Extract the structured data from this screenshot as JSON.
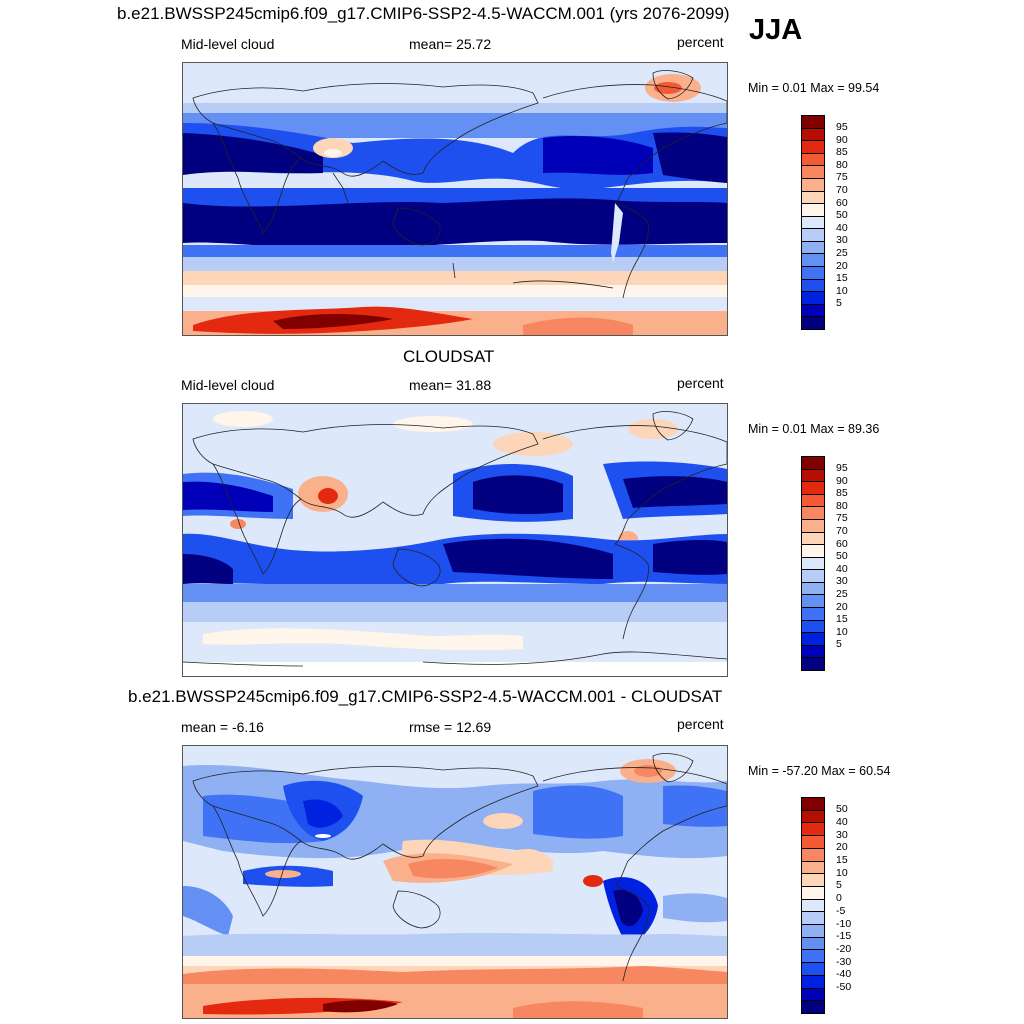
{
  "season": "JJA",
  "panels": [
    {
      "title": "b.e21.BWSSP245cmip6.f09_g17.CMIP6-SSP2-4.5-WACCM.001 (yrs 2076-2099)",
      "left_label": "Mid-level cloud",
      "center_label": "mean=  25.72",
      "right_label": "percent",
      "minmax": "Min =   0.01 Max =  99.54",
      "colorbar_labels": [
        "95",
        "90",
        "85",
        "80",
        "75",
        "70",
        "60",
        "50",
        "40",
        "30",
        "25",
        "20",
        "15",
        "10",
        "5"
      ]
    },
    {
      "title": "CLOUDSAT",
      "left_label": "Mid-level cloud",
      "center_label": "mean=  31.88",
      "right_label": "percent",
      "minmax": "Min =   0.01 Max =  89.36",
      "colorbar_labels": [
        "95",
        "90",
        "85",
        "80",
        "75",
        "70",
        "60",
        "50",
        "40",
        "30",
        "25",
        "20",
        "15",
        "10",
        "5"
      ]
    },
    {
      "title": "b.e21.BWSSP245cmip6.f09_g17.CMIP6-SSP2-4.5-WACCM.001 - CLOUDSAT",
      "left_label": "mean =  -6.16",
      "center_label": "rmse =  12.69",
      "right_label": "percent",
      "minmax": "Min = -57.20 Max =  60.54",
      "colorbar_labels": [
        "50",
        "40",
        "30",
        "20",
        "15",
        "10",
        "5",
        "0",
        "-5",
        "-10",
        "-15",
        "-20",
        "-30",
        "-40",
        "-50"
      ]
    }
  ],
  "colors": {
    "scale": [
      "#000080",
      "#0000b8",
      "#0022e0",
      "#1e50f0",
      "#3f72f5",
      "#6390f2",
      "#8fb0f2",
      "#b8cdf5",
      "#dde8fb",
      "#fff5eb",
      "#fdd5b8",
      "#fbb08c",
      "#f78760",
      "#f45a35",
      "#e32a10",
      "#b60f02",
      "#800000"
    ]
  }
}
